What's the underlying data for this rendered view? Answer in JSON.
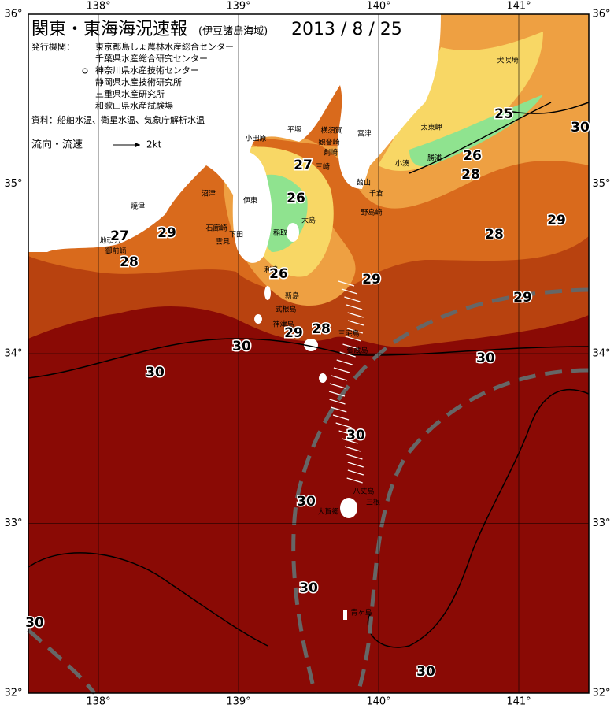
{
  "header": {
    "title": "関東・東海海況速報",
    "subtitle": "(伊豆諸島海域)",
    "date": "2013 / 8 / 25",
    "publisher_label": "発行機関：",
    "agencies": [
      "東京都島しょ農林水産総合センター",
      "千葉県水産総合研究センター",
      "神奈川県水産技術センター",
      "静岡県水産技術研究所",
      "三重県水産研究所",
      "和歌山県水産試験場"
    ],
    "source": "資料：船舶水温、衛星水温、気象庁解析水温"
  },
  "legend": {
    "label": "流向・流速",
    "unit": "2kt"
  },
  "axes": {
    "lon": [
      {
        "value": 138,
        "label": "138°"
      },
      {
        "value": 139,
        "label": "139°"
      },
      {
        "value": 140,
        "label": "140°"
      },
      {
        "value": 141,
        "label": "141°"
      }
    ],
    "lat": [
      {
        "value": 36,
        "label": "36°"
      },
      {
        "value": 35,
        "label": "35°"
      },
      {
        "value": 34,
        "label": "34°"
      },
      {
        "value": 33,
        "label": "33°"
      },
      {
        "value": 32,
        "label": "32°"
      }
    ]
  },
  "places": [
    "犬吠埼",
    "太東岬",
    "勝浦",
    "小湊",
    "富津",
    "横須賀",
    "観音崎",
    "剣崎",
    "三崎",
    "館山",
    "千倉",
    "野島崎",
    "平塚",
    "小田原",
    "沼津",
    "伊東",
    "稲取",
    "下田",
    "石廊崎",
    "雲見",
    "焼津",
    "御前崎",
    "地頭方",
    "大島",
    "利島",
    "新島",
    "式根島",
    "神津島",
    "三宅島",
    "御蔵島",
    "八丈島",
    "三根",
    "大賀郷",
    "青ヶ島"
  ],
  "isotherm_labels": [
    25,
    26,
    28,
    30,
    29,
    28,
    29,
    27,
    26,
    26,
    29,
    27,
    29,
    28,
    29,
    28,
    30,
    30,
    30,
    30,
    30,
    30,
    30,
    30
  ]
}
